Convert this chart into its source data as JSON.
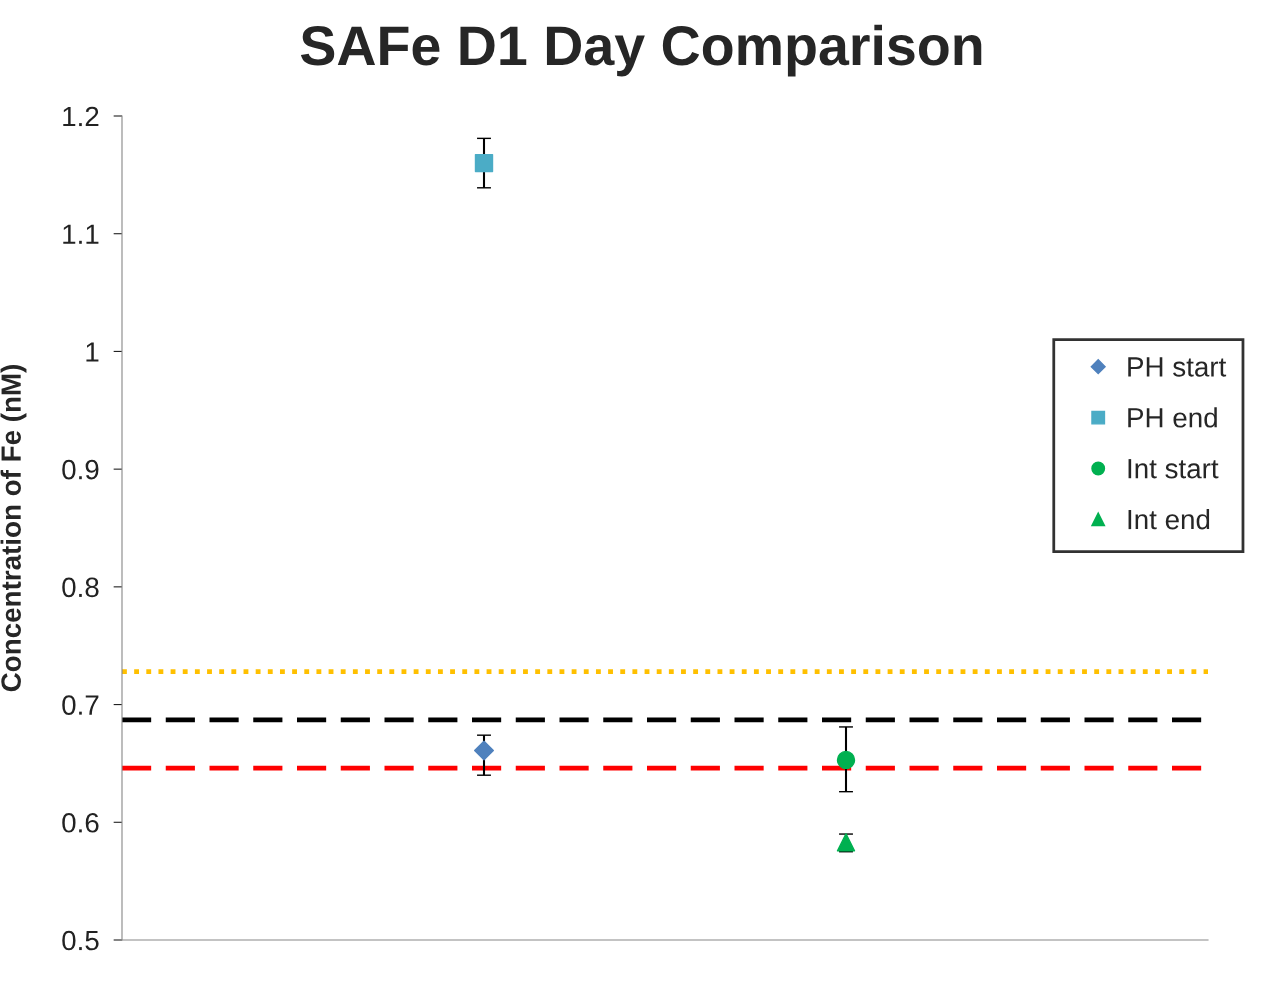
{
  "chart_data": {
    "type": "scatter",
    "title": "SAFe D1 Day Comparison",
    "ylabel": "Concentration of Fe (nM)",
    "categories": [
      null,
      null
    ],
    "series": [
      {
        "name": "PH start",
        "color": "#4f81bd",
        "marker": "diamond",
        "values": [
          0.661,
          null
        ],
        "errors": [
          [
            0.64,
            0.674
          ],
          null
        ]
      },
      {
        "name": "PH end",
        "color": "#4bacc6",
        "marker": "square",
        "values": [
          1.16,
          null
        ],
        "errors": [
          [
            1.139,
            1.181
          ],
          null
        ]
      },
      {
        "name": "Int start",
        "color": "#00b050",
        "marker": "circle",
        "values": [
          null,
          0.653
        ],
        "errors": [
          null,
          [
            0.626,
            0.681
          ]
        ]
      },
      {
        "name": "Int end",
        "color": "#00b050",
        "marker": "triangle",
        "values": [
          null,
          0.583
        ],
        "errors": [
          null,
          [
            0.575,
            0.59
          ]
        ]
      }
    ],
    "ref_lines": [
      {
        "axis": "y",
        "value": 0.728,
        "color": "#ffc000",
        "line_style": "dotted"
      },
      {
        "axis": "y",
        "value": 0.687,
        "color": "#000000",
        "line_style": "dashed"
      },
      {
        "axis": "y",
        "value": 0.646,
        "color": "#ff0000",
        "line_style": "dashed"
      }
    ],
    "ylim": [
      0.5,
      1.2
    ],
    "yticks": [
      0.5,
      0.6,
      0.7,
      0.8,
      0.9,
      1,
      1.1,
      1.2
    ],
    "grid": false,
    "legend": "right"
  }
}
